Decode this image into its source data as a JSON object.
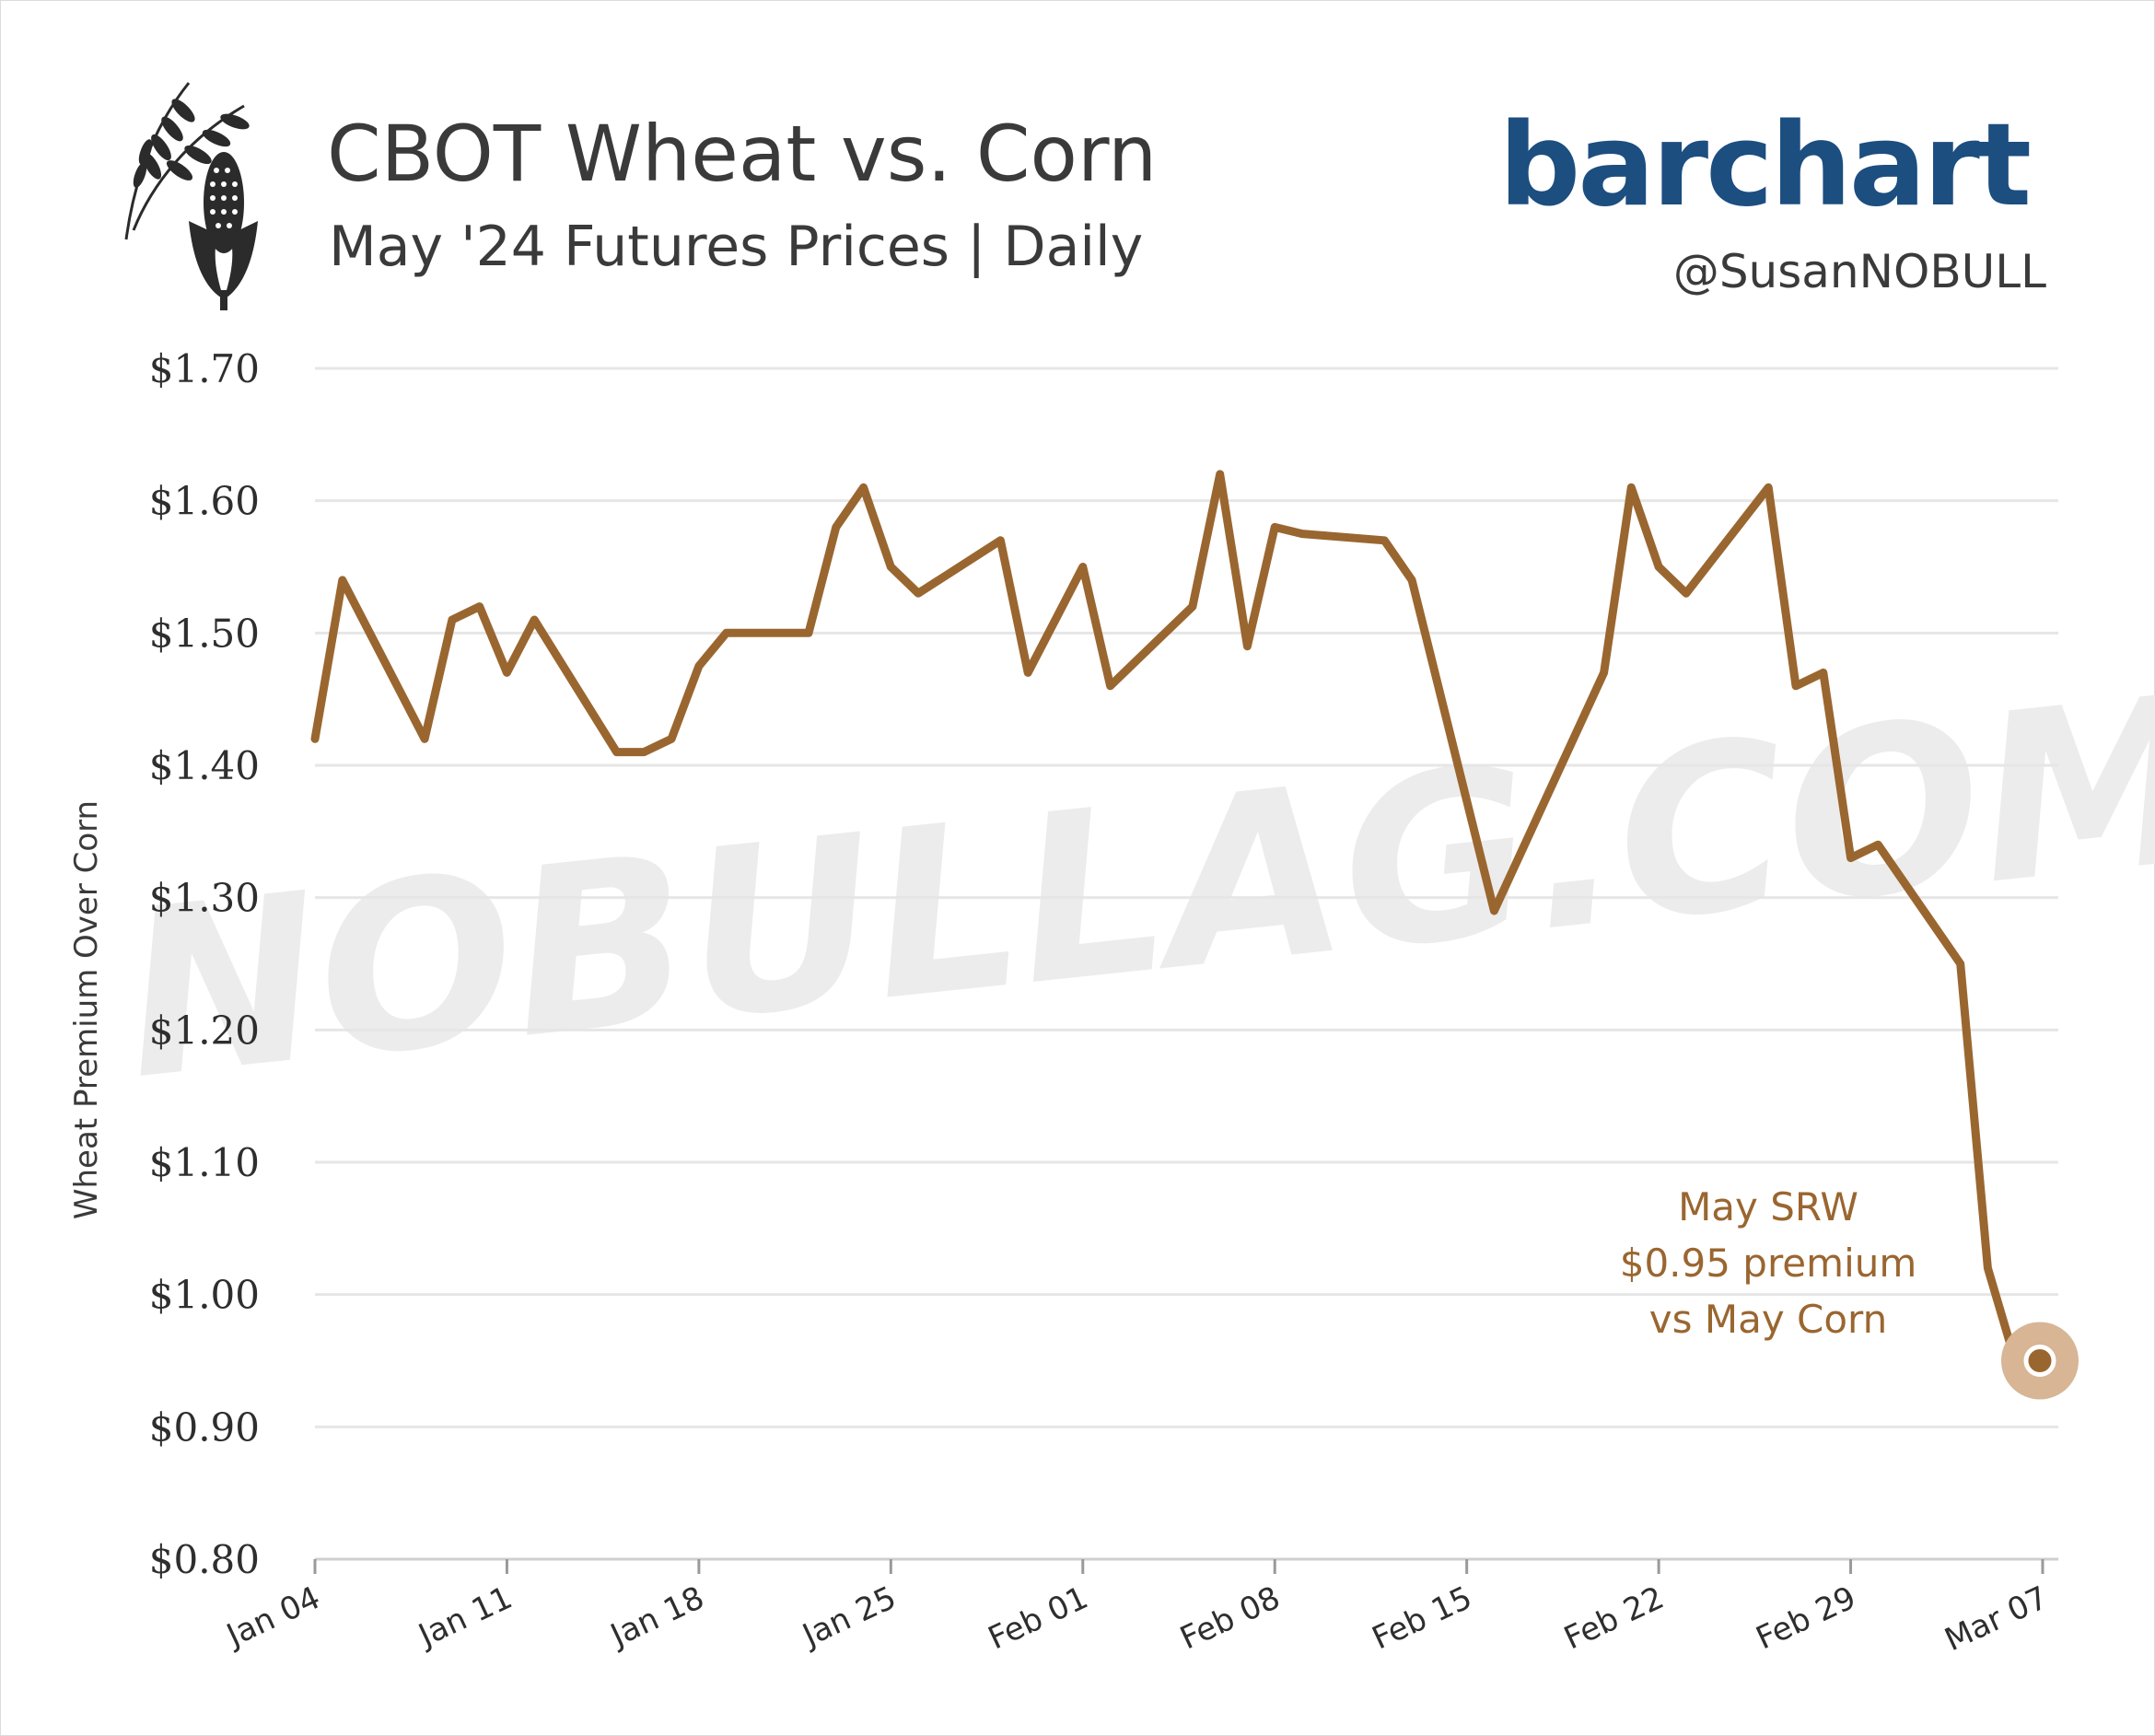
{
  "header": {
    "title": "CBOT Wheat vs. Corn",
    "subtitle": "May '24 Futures Prices | Daily",
    "brand": "barchart",
    "handle": "@SusanNOBULL",
    "watermark": "NOBULLAG.COM",
    "icons": [
      "wheat-icon",
      "corn-icon"
    ]
  },
  "colors": {
    "line": "#9a6630",
    "grid": "#e6e6e6",
    "brand": "#1c4e80",
    "text": "#3a3a3a",
    "watermark": "#ececec",
    "marker_halo": "#d7b595"
  },
  "chart_data": {
    "type": "line",
    "ylabel": "Wheat Premium Over Corn",
    "ylim": [
      0.8,
      1.7
    ],
    "yticks": [
      0.8,
      0.9,
      1.0,
      1.1,
      1.2,
      1.3,
      1.4,
      1.5,
      1.6,
      1.7
    ],
    "ytick_labels": [
      "$0.80",
      "$0.90",
      "$1.00",
      "$1.10",
      "$1.20",
      "$1.30",
      "$1.40",
      "$1.50",
      "$1.60",
      "$1.70"
    ],
    "xlim": [
      "2024-01-04",
      "2024-03-07"
    ],
    "xticks": [
      "2024-01-04",
      "2024-01-11",
      "2024-01-18",
      "2024-01-25",
      "2024-02-01",
      "2024-02-08",
      "2024-02-15",
      "2024-02-22",
      "2024-02-29",
      "2024-03-07"
    ],
    "xtick_labels": [
      "Jan 04",
      "Jan 11",
      "Jan 18",
      "Jan 25",
      "Feb 01",
      "Feb 08",
      "Feb 15",
      "Feb 22",
      "Feb 29",
      "Mar 07"
    ],
    "grid": true,
    "series": [
      {
        "x": [
          "2024-01-04",
          "2024-01-05",
          "2024-01-08",
          "2024-01-09",
          "2024-01-10",
          "2024-01-11",
          "2024-01-12",
          "2024-01-15",
          "2024-01-16",
          "2024-01-17",
          "2024-01-18",
          "2024-01-19",
          "2024-01-22",
          "2024-01-23",
          "2024-01-24",
          "2024-01-25",
          "2024-01-26",
          "2024-01-29",
          "2024-01-30",
          "2024-01-31",
          "2024-02-01",
          "2024-02-02",
          "2024-02-05",
          "2024-02-06",
          "2024-02-07",
          "2024-02-08",
          "2024-02-09",
          "2024-02-12",
          "2024-02-13",
          "2024-02-16",
          "2024-02-20",
          "2024-02-21",
          "2024-02-22",
          "2024-02-23",
          "2024-02-26",
          "2024-02-27",
          "2024-02-28",
          "2024-02-29",
          "2024-03-01",
          "2024-03-04",
          "2024-03-05",
          "2024-03-06",
          "2024-03-07"
        ],
        "values": [
          1.42,
          1.54,
          1.42,
          1.51,
          1.52,
          1.47,
          1.51,
          1.41,
          1.41,
          1.42,
          1.475,
          1.5,
          1.5,
          1.58,
          1.61,
          1.55,
          1.53,
          1.57,
          1.47,
          1.51,
          1.55,
          1.46,
          1.52,
          1.62,
          1.49,
          1.58,
          1.575,
          1.57,
          1.54,
          1.29,
          1.47,
          1.61,
          1.55,
          1.53,
          1.61,
          1.46,
          1.47,
          1.33,
          1.34,
          1.25,
          1.02,
          0.95,
          0.95
        ]
      }
    ],
    "annotation": {
      "lines": [
        "May SRW",
        "$0.95 premium",
        "vs May Corn"
      ],
      "x": "2024-03-07",
      "y": 0.95
    }
  }
}
